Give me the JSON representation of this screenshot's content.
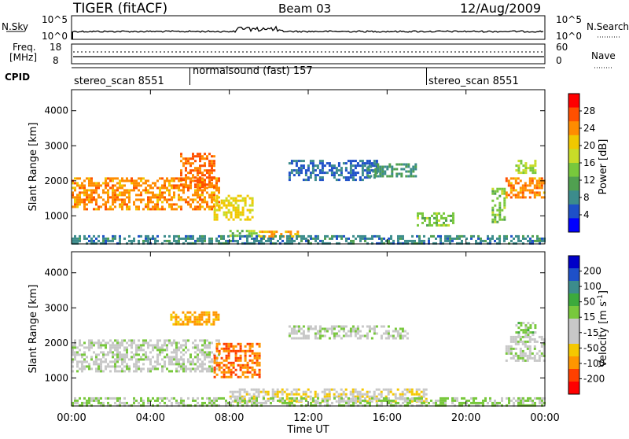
{
  "header": {
    "title": "TIGER (fitACF)",
    "beam": "Beam 03",
    "date": "12/Aug/2009"
  },
  "top_panels": {
    "nsky_label": "N.Sky",
    "nsky_ticks": [
      "10^5",
      "10^0"
    ],
    "nsearch_label": "N.Search",
    "freq_label": "Freq.",
    "freq_unit": "[MHz]",
    "freq_ticks": [
      "18",
      "8"
    ],
    "nave_label": "Nave",
    "nave_ticks": [
      "60",
      "0"
    ],
    "cpid_label": "CPID",
    "cpid_segments": [
      {
        "label": "stereo_scan 8551",
        "start_hour": 0,
        "end_hour": 6
      },
      {
        "label": "normalsound (fast) 157",
        "start_hour": 6,
        "end_hour": 18
      },
      {
        "label": "stereo_scan 8551",
        "start_hour": 18,
        "end_hour": 24
      }
    ]
  },
  "x_axis": {
    "label": "Time UT",
    "ticks": [
      "00:00",
      "04:00",
      "08:00",
      "12:00",
      "16:00",
      "20:00",
      "00:00"
    ]
  },
  "colors": {
    "power": [
      "#0000ff",
      "#1e50c8",
      "#3c8c8c",
      "#50a050",
      "#78c83c",
      "#c8dc28",
      "#f0c800",
      "#ff8c00",
      "#ff5000",
      "#ff0000"
    ],
    "velocity": [
      "#ff0000",
      "#ff4000",
      "#ff9600",
      "#f5c800",
      "#c8c8c8",
      "#c8c8c8",
      "#78c83c",
      "#3caa3c",
      "#3c8c8c",
      "#1e50c8",
      "#0000c8"
    ]
  },
  "chart_data": [
    {
      "type": "heatmap",
      "panel": "power",
      "ylabel": "Slant Range [km]",
      "yticks": [
        "1000",
        "2000",
        "3000",
        "4000"
      ],
      "ylim": [
        200,
        4600
      ],
      "xlim_hours": [
        0,
        24
      ],
      "colorbar_label": "Power [dB]",
      "colorbar_ticks": [
        "4",
        "8",
        "12",
        "16",
        "20",
        "24",
        "28"
      ],
      "colorbar_range": [
        0,
        32
      ],
      "features": [
        {
          "hours": [
            0,
            7.5
          ],
          "range_km": [
            1200,
            2100
          ],
          "level": 24
        },
        {
          "hours": [
            5.5,
            7.2
          ],
          "range_km": [
            1800,
            2800
          ],
          "level": 26
        },
        {
          "hours": [
            7.2,
            9.2
          ],
          "range_km": [
            900,
            1600
          ],
          "level": 20
        },
        {
          "hours": [
            8,
            9.5
          ],
          "range_km": [
            400,
            600
          ],
          "level": 14
        },
        {
          "hours": [
            9.5,
            11.5
          ],
          "range_km": [
            380,
            580
          ],
          "level": 22
        },
        {
          "hours": [
            11,
            15.5
          ],
          "range_km": [
            2000,
            2600
          ],
          "level": 6
        },
        {
          "hours": [
            15,
            17.5
          ],
          "range_km": [
            2100,
            2500
          ],
          "level": 10
        },
        {
          "hours": [
            17.5,
            19.3
          ],
          "range_km": [
            700,
            1100
          ],
          "level": 14
        },
        {
          "hours": [
            21.3,
            22
          ],
          "range_km": [
            800,
            1800
          ],
          "level": 14
        },
        {
          "hours": [
            22,
            24
          ],
          "range_km": [
            1500,
            2100
          ],
          "level": 24
        },
        {
          "hours": [
            22.5,
            23.5
          ],
          "range_km": [
            2200,
            2600
          ],
          "level": 16
        },
        {
          "hours": [
            0,
            24
          ],
          "range_km": [
            200,
            450
          ],
          "level": 8
        }
      ]
    },
    {
      "type": "heatmap",
      "panel": "velocity",
      "ylabel": "Slant Range [km]",
      "yticks": [
        "1000",
        "2000",
        "3000",
        "4000"
      ],
      "ylim": [
        200,
        4600
      ],
      "xlim_hours": [
        0,
        24
      ],
      "colorbar_label": "Velocity [m s^-1]",
      "colorbar_ticks": [
        "-200",
        "-100",
        "-50",
        "-15",
        "15",
        "50",
        "100",
        "200"
      ],
      "colorbar_range": [
        -250,
        250
      ],
      "features": [
        {
          "hours": [
            0,
            7.5
          ],
          "range_km": [
            1200,
            2100
          ],
          "velocity": 0
        },
        {
          "hours": [
            5,
            7.5
          ],
          "range_km": [
            2500,
            2900
          ],
          "velocity": -120
        },
        {
          "hours": [
            7.2,
            9.5
          ],
          "range_km": [
            1000,
            2000
          ],
          "velocity": -150
        },
        {
          "hours": [
            11,
            17
          ],
          "range_km": [
            2100,
            2500
          ],
          "velocity": 5
        },
        {
          "hours": [
            8,
            18
          ],
          "range_km": [
            300,
            700
          ],
          "velocity": -60
        },
        {
          "hours": [
            22,
            24
          ],
          "range_km": [
            1500,
            2200
          ],
          "velocity": 0
        },
        {
          "hours": [
            22.5,
            23.5
          ],
          "range_km": [
            2200,
            2600
          ],
          "velocity": 40
        },
        {
          "hours": [
            0,
            24
          ],
          "range_km": [
            200,
            450
          ],
          "velocity": 30
        }
      ]
    }
  ]
}
